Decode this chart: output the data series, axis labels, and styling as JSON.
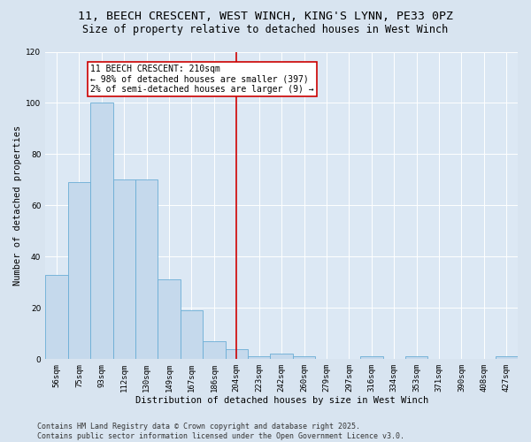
{
  "title1": "11, BEECH CRESCENT, WEST WINCH, KING'S LYNN, PE33 0PZ",
  "title2": "Size of property relative to detached houses in West Winch",
  "xlabel": "Distribution of detached houses by size in West Winch",
  "ylabel": "Number of detached properties",
  "categories": [
    "56sqm",
    "75sqm",
    "93sqm",
    "112sqm",
    "130sqm",
    "149sqm",
    "167sqm",
    "186sqm",
    "204sqm",
    "223sqm",
    "242sqm",
    "260sqm",
    "279sqm",
    "297sqm",
    "316sqm",
    "334sqm",
    "353sqm",
    "371sqm",
    "390sqm",
    "408sqm",
    "427sqm"
  ],
  "values": [
    33,
    69,
    100,
    70,
    70,
    31,
    19,
    7,
    4,
    1,
    2,
    1,
    0,
    0,
    1,
    0,
    1,
    0,
    0,
    0,
    1
  ],
  "bar_color": "#c5d9ec",
  "bar_edge_color": "#6aadd5",
  "vline_x": 8,
  "vline_color": "#cc0000",
  "annotation_box_text": "11 BEECH CRESCENT: 210sqm\n← 98% of detached houses are smaller (397)\n2% of semi-detached houses are larger (9) →",
  "annotation_box_color": "#cc0000",
  "ylim": [
    0,
    120
  ],
  "yticks": [
    0,
    20,
    40,
    60,
    80,
    100,
    120
  ],
  "fig_background_color": "#d8e4f0",
  "axes_background_color": "#dce8f4",
  "grid_color": "#ffffff",
  "footer": "Contains HM Land Registry data © Crown copyright and database right 2025.\nContains public sector information licensed under the Open Government Licence v3.0.",
  "title_fontsize": 9.5,
  "subtitle_fontsize": 8.5,
  "axis_label_fontsize": 7.5,
  "tick_fontsize": 6.5,
  "annotation_fontsize": 7,
  "footer_fontsize": 6
}
